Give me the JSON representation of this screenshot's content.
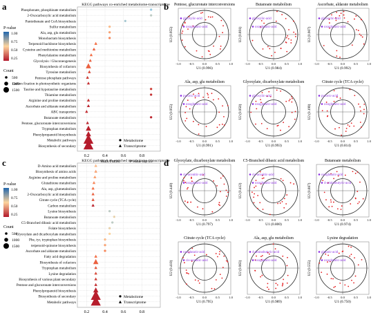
{
  "panel_labels": [
    "a",
    "b",
    "c",
    "d"
  ],
  "colors": {
    "grid": "#cccccc",
    "low": "#b2182b",
    "mid": "#fdd49e",
    "high": "#2166ac",
    "metabolite_point": "#e41a1c",
    "metabolite_label": "#8a2be2",
    "circle": "#222222"
  },
  "chart_data": [
    {
      "id": "a",
      "type": "scatter",
      "title": "KEGG pathways co-enriched metabolome-transcriptome",
      "xlabel": "Rich Factor",
      "xlabel2": "P-value top-25",
      "xticks": [
        "0.2",
        "0.4",
        "0.6",
        "0.8"
      ],
      "xlim": [
        0.1,
        1.0
      ],
      "pathways": [
        {
          "name": "Phosphonate, phosphinate metabolism",
          "rf": 0.9,
          "p": 0.8,
          "size": 1,
          "shape": "circle"
        },
        {
          "name": "2-Oxocarboxylic acid metabolism",
          "rf": 0.9,
          "p": 0.7,
          "size": 1,
          "shape": "circle"
        },
        {
          "name": "Pantothenate and CoA biosynthesis",
          "rf": 0.62,
          "p": 0.75,
          "size": 1,
          "shape": "circle"
        },
        {
          "name": "Sulfur metabolism",
          "rf": 0.45,
          "p": 0.5,
          "size": 1,
          "shape": "circle"
        },
        {
          "name": "Ala, asp, glu metabolism",
          "rf": 0.45,
          "p": 0.45,
          "size": 1,
          "shape": "circle"
        },
        {
          "name": "Monobactam biosynthesis",
          "rf": 0.45,
          "p": 0.4,
          "size": 1,
          "shape": "circle"
        },
        {
          "name": "Terpenoid backbone biosynthesis",
          "rf": 0.3,
          "p": 0.35,
          "size": 1,
          "shape": "triangle"
        },
        {
          "name": "Cysteine and methionine metabolism",
          "rf": 0.28,
          "p": 0.3,
          "size": 1,
          "shape": "triangle"
        },
        {
          "name": "Phenylalanine metabolism",
          "rf": 0.25,
          "p": 0.35,
          "size": 1,
          "shape": "triangle"
        },
        {
          "name": "Glycolysis / Gluconeogenesis",
          "rf": 0.24,
          "p": 0.3,
          "size": 1,
          "shape": "triangle"
        },
        {
          "name": "Biosynthesis of cofactors",
          "rf": 0.22,
          "p": 0.3,
          "size": 2,
          "shape": "triangle"
        },
        {
          "name": "Tyrosine metabolism",
          "rf": 0.23,
          "p": 0.2,
          "size": 1,
          "shape": "triangle"
        },
        {
          "name": "Pentose phosphate pathways",
          "rf": 0.21,
          "p": 0.15,
          "size": 1,
          "shape": "triangle"
        },
        {
          "name": "Carbon fixation in photosynthetic organisms",
          "rf": 0.22,
          "p": 0.1,
          "size": 1,
          "shape": "triangle"
        },
        {
          "name": "Taurine and hypotaurine metabolism",
          "rf": 0.9,
          "p": 0.15,
          "size": 1,
          "shape": "circle"
        },
        {
          "name": "Thiamine metabolism",
          "rf": 0.9,
          "p": 0.1,
          "size": 1,
          "shape": "circle"
        },
        {
          "name": "Arginine and proline metabolism",
          "rf": 0.22,
          "p": 0.1,
          "size": 1,
          "shape": "triangle"
        },
        {
          "name": "Ascorbate and aldarate metabolism",
          "rf": 0.22,
          "p": 0.05,
          "size": 1,
          "shape": "triangle"
        },
        {
          "name": "ABC transporters",
          "rf": 0.2,
          "p": 0.08,
          "size": 1,
          "shape": "triangle"
        },
        {
          "name": "Butanoate metabolism",
          "rf": 0.9,
          "p": 0.06,
          "size": 1,
          "shape": "circle"
        },
        {
          "name": "Pentose, glucuronate interconversions",
          "rf": 0.21,
          "p": 0.05,
          "size": 1,
          "shape": "triangle"
        },
        {
          "name": "Tryptophan metabolism",
          "rf": 0.22,
          "p": 0.04,
          "size": 2,
          "shape": "triangle"
        },
        {
          "name": "Phenylpropanoid biosynthesis",
          "rf": 0.22,
          "p": 0.03,
          "size": 2,
          "shape": "triangle"
        },
        {
          "name": "Metabolic pathways",
          "rf": 0.22,
          "p": 0.02,
          "size": 3,
          "shape": "triangle"
        },
        {
          "name": "Biosynthesis of secondary",
          "rf": 0.22,
          "p": 0.01,
          "size": 3,
          "shape": "triangle"
        }
      ],
      "legend": {
        "pvalue_title": "P-value",
        "pvalue_ticks": [
          "1.00",
          "0.75",
          "0.50",
          "0.25"
        ],
        "count_title": "Count",
        "count_values": [
          "500",
          "1000",
          "1500"
        ],
        "shape_labels": [
          "Metabolome",
          "Transcriptome"
        ]
      }
    },
    {
      "id": "c",
      "type": "scatter",
      "title": "KEGG pathways co-enriched metabolome-transcriptome",
      "xlabel": "Rich Factor",
      "xlabel2": "P-value top-25",
      "xticks": [
        "0.2",
        "0.4",
        "0.6",
        "0.8"
      ],
      "xlim": [
        0.1,
        1.0
      ],
      "pathways": [
        {
          "name": "D-Amino acid metabolism",
          "rf": 0.3,
          "p": 0.5,
          "size": 1,
          "shape": "triangle"
        },
        {
          "name": "Biosynthesis of amino acids",
          "rf": 0.3,
          "p": 0.45,
          "size": 1,
          "shape": "triangle"
        },
        {
          "name": "Arginine and proline metabolism",
          "rf": 0.29,
          "p": 0.45,
          "size": 1,
          "shape": "triangle"
        },
        {
          "name": "Glutathione metabolism",
          "rf": 0.28,
          "p": 0.4,
          "size": 1,
          "shape": "triangle"
        },
        {
          "name": "Ala, asp, glumetabolism",
          "rf": 0.27,
          "p": 0.35,
          "size": 1,
          "shape": "triangle"
        },
        {
          "name": "2-Oxocarboxylic acid metabolism",
          "rf": 0.27,
          "p": 0.3,
          "size": 1,
          "shape": "triangle"
        },
        {
          "name": "Citrate cycle (TCA cycle)",
          "rf": 0.27,
          "p": 0.25,
          "size": 1,
          "shape": "triangle"
        },
        {
          "name": "Carbon metabolism",
          "rf": 0.27,
          "p": 0.05,
          "size": 1,
          "shape": "triangle"
        },
        {
          "name": "Lysine biosynthesis",
          "rf": 0.45,
          "p": 0.7,
          "size": 1,
          "shape": "circle"
        },
        {
          "name": "Butanoate metabolism",
          "rf": 0.5,
          "p": 0.6,
          "size": 1,
          "shape": "circle"
        },
        {
          "name": "C5-Branched dibasic acid metabolism",
          "rf": 0.48,
          "p": 0.7,
          "size": 1,
          "shape": "circle"
        },
        {
          "name": "Folate biosynthesis",
          "rf": 0.45,
          "p": 0.6,
          "size": 1,
          "shape": "circle"
        },
        {
          "name": "Glyoxylate and dicarboxylate metabolism",
          "rf": 0.45,
          "p": 0.55,
          "size": 1,
          "shape": "circle"
        },
        {
          "name": "Phe, tyr, tryptophan biosynthesis",
          "rf": 0.4,
          "p": 0.5,
          "size": 1,
          "shape": "circle"
        },
        {
          "name": "terpenoid-quinone biosynthesis",
          "rf": 0.4,
          "p": 0.45,
          "size": 1,
          "shape": "circle"
        },
        {
          "name": "Ascorbate and aldarate metabolism",
          "rf": 0.4,
          "p": 0.4,
          "size": 1,
          "shape": "circle"
        },
        {
          "name": "Fatty acid degradation",
          "rf": 0.3,
          "p": 0.35,
          "size": 1,
          "shape": "triangle"
        },
        {
          "name": "Biosynthesis of cofactors",
          "rf": 0.3,
          "p": 0.3,
          "size": 2,
          "shape": "triangle"
        },
        {
          "name": "Tryptophan metabolism",
          "rf": 0.3,
          "p": 0.25,
          "size": 1,
          "shape": "triangle"
        },
        {
          "name": "Lysine degradation",
          "rf": 0.3,
          "p": 0.2,
          "size": 1,
          "shape": "triangle"
        },
        {
          "name": "Biosynthesis of various plant secondary",
          "rf": 0.3,
          "p": 0.15,
          "size": 1,
          "shape": "triangle"
        },
        {
          "name": "Pentose and glucuronate interconversions",
          "rf": 0.3,
          "p": 0.1,
          "size": 1,
          "shape": "triangle"
        },
        {
          "name": "Phenylpropanoid biosynthesis",
          "rf": 0.3,
          "p": 0.05,
          "size": 2,
          "shape": "triangle"
        },
        {
          "name": "Biosynthesis of secondary",
          "rf": 0.3,
          "p": 0.03,
          "size": 3,
          "shape": "triangle"
        },
        {
          "name": "Metabolic pathways",
          "rf": 0.3,
          "p": 0.02,
          "size": 3,
          "shape": "triangle"
        }
      ],
      "legend": {
        "pvalue_title": "P-value",
        "pvalue_ticks": [
          "1.00",
          "0.75",
          "0.50",
          "0.25"
        ],
        "count_title": "Count",
        "count_values": [
          "500",
          "1000",
          "1500"
        ],
        "shape_labels": [
          "Metabolome",
          "Transcriptome"
        ]
      }
    },
    {
      "id": "b",
      "type": "scatter",
      "panels": [
        {
          "title": "Pentose, glucuronate interconversions",
          "xlabel": "U1 (0.996)",
          "ylabel": "U2 (0.955)",
          "labels": [
            "glyoxylic-acid",
            "oxoglutaric-acid"
          ]
        },
        {
          "title": "Butanoate metabolism",
          "xlabel": "U1 (0.984)",
          "ylabel": "U2 (0.891)",
          "labels": [
            "glyoxylic-acid",
            "oxoglutaric-acid"
          ]
        },
        {
          "title": "Ascorbate, aldarate metabolism",
          "xlabel": "U1 (0.992)",
          "ylabel": "U2 (0.907)",
          "labels": [
            "glyoxylic-acid",
            "oxoglutaric-acid"
          ]
        },
        {
          "title": "Ala, asp, glu metabolism",
          "xlabel": "U1 (0.991)",
          "ylabel": "U2 (0.955)",
          "labels": [
            "pyruvic-acid",
            "oxoglutaric-acid"
          ]
        },
        {
          "title": "Glyoxylate, dicarboxylate metabolism",
          "xlabel": "U1 (0.993)",
          "ylabel": "U2 (0.950)",
          "labels": [
            "glyoxylic-acid",
            "oxoglutaric-acid"
          ]
        },
        {
          "title": "Citrate cycle (TCA cycle)",
          "xlabel": "U1 (0.814)",
          "ylabel": "U2 (0.199)",
          "labels": [
            "pyruvic-acid",
            "oxoglutaric-acid"
          ]
        }
      ],
      "xticks": [
        "-1.0",
        "-0.5",
        "0.0",
        "0.5",
        "1.0"
      ]
    },
    {
      "id": "d",
      "type": "scatter",
      "panels": [
        {
          "title": "Glyoxylate, dicarboxylate metabolism",
          "xlabel": "U1 (0.797)",
          "ylabel": "U2 (0.440)",
          "labels": [
            "cis-aconitic-acid",
            "oxoglutaric-acid"
          ]
        },
        {
          "title": "C5-Branched dibasic acid metabolism",
          "xlabel": "U1 (0.800)",
          "ylabel": "U2 (0.412)",
          "labels": [
            "cis-aconitic-acid",
            "oxoglutaric-acid"
          ]
        },
        {
          "title": "Butanoate metabolism",
          "xlabel": "U1 (0.974)",
          "ylabel": "U2 (0.887)",
          "labels": [
            "oxoglutaric-acid",
            "4-aminobutyric-acid"
          ]
        },
        {
          "title": "Citrate cycle (TCA cycle)",
          "xlabel": "U1 (0.795)",
          "ylabel": "U2 (0.410)",
          "labels": [
            "oxoglutaric-acid",
            "cis-aconitic-acid"
          ]
        },
        {
          "title": "Ala, asp, glu metabolism",
          "xlabel": "U1 (0.989)",
          "ylabel": "U2 (0.963)",
          "labels": [
            "4-aminobutyric-acid",
            "oxoglutaric-acid"
          ]
        },
        {
          "title": "Lysine degradation",
          "xlabel": "U1 (0.750)",
          "ylabel": "U2 (0.555)",
          "labels": [
            "glutaric-acid",
            "oxoglutaric-acid"
          ]
        }
      ],
      "xticks": [
        "-1.0",
        "-0.5",
        "0.0",
        "0.5",
        "1.0"
      ]
    }
  ]
}
